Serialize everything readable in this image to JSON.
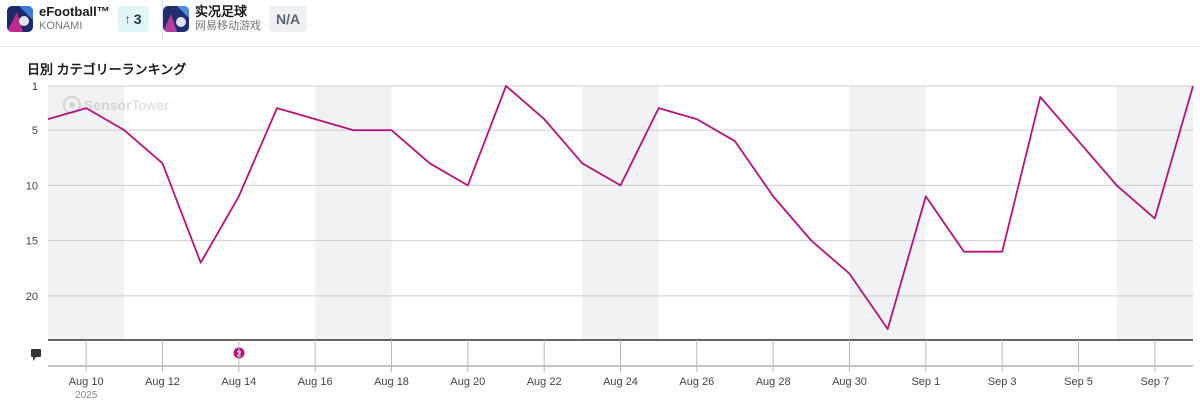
{
  "apps": [
    {
      "name": "eFootball™",
      "publisher": "KONAMI",
      "badge": "3",
      "badge_arrow": "↑"
    },
    {
      "name": "实况足球",
      "publisher": "网易移动游戏",
      "badge": "N/A"
    }
  ],
  "watermark": {
    "brand_a": "Sensor",
    "brand_b": "Tower"
  },
  "annotation_marker": "2",
  "chart_data": {
    "type": "line",
    "title": "日別 カテゴリーランキング",
    "xlabel": "",
    "ylabel": "",
    "y_inverted": true,
    "ylim": [
      1,
      24
    ],
    "y_ticks": [
      1,
      5,
      10,
      15,
      20
    ],
    "grid": true,
    "x": [
      "2025-08-09",
      "2025-08-10",
      "2025-08-11",
      "2025-08-12",
      "2025-08-13",
      "2025-08-14",
      "2025-08-15",
      "2025-08-16",
      "2025-08-17",
      "2025-08-18",
      "2025-08-19",
      "2025-08-20",
      "2025-08-21",
      "2025-08-22",
      "2025-08-23",
      "2025-08-24",
      "2025-08-25",
      "2025-08-26",
      "2025-08-27",
      "2025-08-28",
      "2025-08-29",
      "2025-08-30",
      "2025-08-31",
      "2025-09-01",
      "2025-09-02",
      "2025-09-03",
      "2025-09-04",
      "2025-09-05",
      "2025-09-06",
      "2025-09-07",
      "2025-09-08"
    ],
    "x_tick_labels": [
      "Aug 10",
      "Aug 12",
      "Aug 14",
      "Aug 16",
      "Aug 18",
      "Aug 20",
      "Aug 22",
      "Aug 24",
      "Aug 26",
      "Aug 28",
      "Aug 30",
      "Sep 1",
      "Sep 3",
      "Sep 5",
      "Sep 7"
    ],
    "x_year_label": "2025",
    "weekend_shading": true,
    "series": [
      {
        "name": "eFootball™",
        "color": "#b5137d",
        "values": [
          4,
          3,
          5,
          8,
          17,
          11,
          3,
          4,
          5,
          5,
          8,
          10,
          1,
          4,
          8,
          10,
          3,
          4,
          6,
          11,
          15,
          18,
          23,
          11,
          16,
          16,
          2,
          6,
          10,
          13,
          1
        ]
      }
    ]
  }
}
